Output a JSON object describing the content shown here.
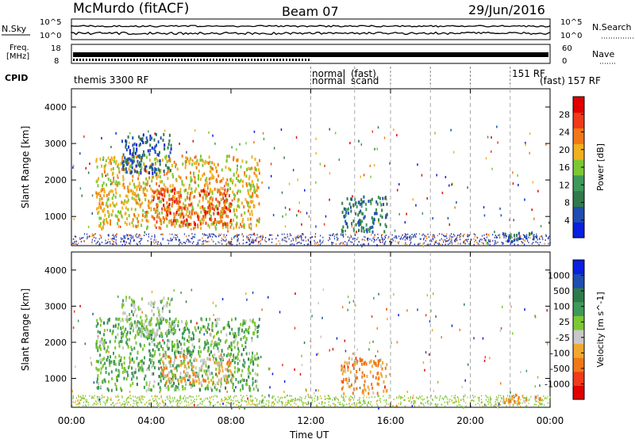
{
  "header": {
    "station": "McMurdo (fitACF)",
    "beam": "Beam 07",
    "date": "29/Jun/2016"
  },
  "aux_panels": {
    "nsky_label": "N.Sky",
    "nsearch_label": "N.Search",
    "nsky_ticks": [
      "10^5",
      "10^0"
    ],
    "nsearch_ticks": [
      "10^5",
      "10^0"
    ],
    "freq_label": [
      "Freq.",
      "[MHz]"
    ],
    "freq_ticks": [
      "18",
      "8"
    ],
    "nave_label": "Nave",
    "nave_ticks": [
      "60",
      "0"
    ],
    "cpid_label": "CPID",
    "cpid_entries": [
      {
        "text": "themis 3300 RF"
      },
      {
        "text": "normal"
      },
      {
        "text": "normal"
      },
      {
        "text": "(fast)"
      },
      {
        "text": "scand"
      },
      {
        "text": "151 RF"
      },
      {
        "text": "157 RF"
      },
      {
        "text": "(fast)"
      }
    ]
  },
  "colors": {
    "power_scale": [
      "#0a1fe0",
      "#1e4fb0",
      "#2f7a4a",
      "#3f9a5a",
      "#7cc832",
      "#f0b020",
      "#f07818",
      "#f03a1a",
      "#e00000"
    ],
    "velocity_scale": [
      "#e00000",
      "#f03a1a",
      "#f07818",
      "#f0a830",
      "#c8c8c8",
      "#7cc832",
      "#3f9a5a",
      "#2f7a4a",
      "#1e4fb0",
      "#0a1fe0"
    ]
  },
  "chart_data": [
    {
      "type": "heatmap",
      "title": "",
      "xlabel": "",
      "ylabel": "Slant Range [km]",
      "xlim": [
        "00:00",
        "24:00"
      ],
      "ylim": [
        200,
        4500
      ],
      "x_ticks": [
        "00:00",
        "04:00",
        "08:00",
        "12:00",
        "16:00",
        "20:00",
        "00:00"
      ],
      "y_ticks": [
        1000,
        2000,
        3000,
        4000
      ],
      "colorbar": {
        "label": "Power [dB]",
        "ticks": [
          "4",
          "8",
          "12",
          "16",
          "20",
          "24",
          "28"
        ],
        "range": [
          0,
          30
        ]
      },
      "regions": [
        {
          "t_start": 1.2,
          "t_end": 9.4,
          "r_min": 700,
          "r_max": 2700,
          "value": 18
        },
        {
          "t_start": 4.0,
          "t_end": 8.0,
          "r_min": 800,
          "r_max": 1800,
          "value": 24
        },
        {
          "t_start": 2.5,
          "t_end": 5.0,
          "r_min": 2200,
          "r_max": 3300,
          "value": 6
        },
        {
          "t_start": 13.5,
          "t_end": 15.8,
          "r_min": 600,
          "r_max": 1600,
          "value": 8
        },
        {
          "t_start": 21.6,
          "t_end": 23.5,
          "r_min": 350,
          "r_max": 600,
          "value": 6
        }
      ]
    },
    {
      "type": "heatmap",
      "title": "",
      "xlabel": "Time UT",
      "ylabel": "Slant Range [km]",
      "xlim": [
        "00:00",
        "24:00"
      ],
      "ylim": [
        200,
        4500
      ],
      "x_ticks": [
        "00:00",
        "04:00",
        "08:00",
        "12:00",
        "16:00",
        "20:00",
        "00:00"
      ],
      "y_ticks": [
        1000,
        2000,
        3000,
        4000
      ],
      "colorbar": {
        "label": "Velocity [m s^-1]",
        "ticks": [
          "-1000",
          "-500",
          "-100",
          "-25",
          "25",
          "100",
          "500",
          "1000"
        ],
        "range": [
          -1000,
          1000
        ]
      },
      "regions": [
        {
          "t_start": 1.2,
          "t_end": 9.4,
          "r_min": 700,
          "r_max": 2700,
          "value": 200
        },
        {
          "t_start": 4.5,
          "t_end": 8.0,
          "r_min": 900,
          "r_max": 1700,
          "value": -300
        },
        {
          "t_start": 2.5,
          "t_end": 5.0,
          "r_min": 2200,
          "r_max": 3300,
          "value": 50
        },
        {
          "t_start": 13.5,
          "t_end": 15.8,
          "r_min": 600,
          "r_max": 1600,
          "value": -400
        },
        {
          "t_start": 21.6,
          "t_end": 23.5,
          "r_min": 350,
          "r_max": 600,
          "value": -300
        }
      ]
    }
  ]
}
